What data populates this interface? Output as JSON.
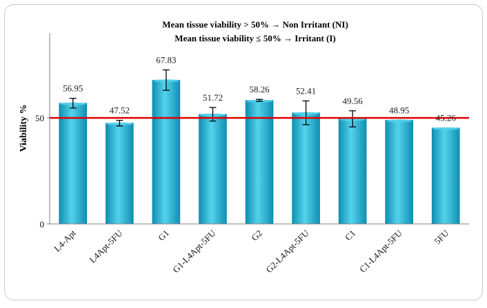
{
  "chart_data": {
    "type": "bar",
    "title": "",
    "annotation_lines": [
      "Mean tissue viability > 50%  →  Non Irritant (NI)",
      "Mean tissue viability ≤ 50%  →  Irritant (I)"
    ],
    "xlabel": "",
    "ylabel": "Viability %",
    "ylim": [
      0,
      90
    ],
    "yticks": [
      0,
      50
    ],
    "threshold": 50,
    "categories": [
      "L4-Apt",
      "L4Apt-5FU",
      "G1",
      "G1-L4Apt-5FU",
      "G2",
      "G2-L4Apt-5FU",
      "C1",
      "C1-L4Apt-5FU",
      "5FU"
    ],
    "values": [
      56.95,
      47.52,
      67.83,
      51.72,
      58.26,
      52.41,
      49.56,
      48.95,
      45.26
    ],
    "errors": [
      2.3,
      1.3,
      4.8,
      3.2,
      0.5,
      5.6,
      3.8,
      0,
      0
    ],
    "value_labels": [
      "56.95",
      "47.52",
      "67.83",
      "51.72",
      "58.26",
      "52.41",
      "49.56",
      "48.95",
      "45.26"
    ],
    "colors": {
      "bar_top": "#55d2ec",
      "bar_mid": "#22b0d2",
      "bar_bottom": "#0f8fb3",
      "threshold_line": "#e00000",
      "axis": "#7f7f7f"
    }
  }
}
